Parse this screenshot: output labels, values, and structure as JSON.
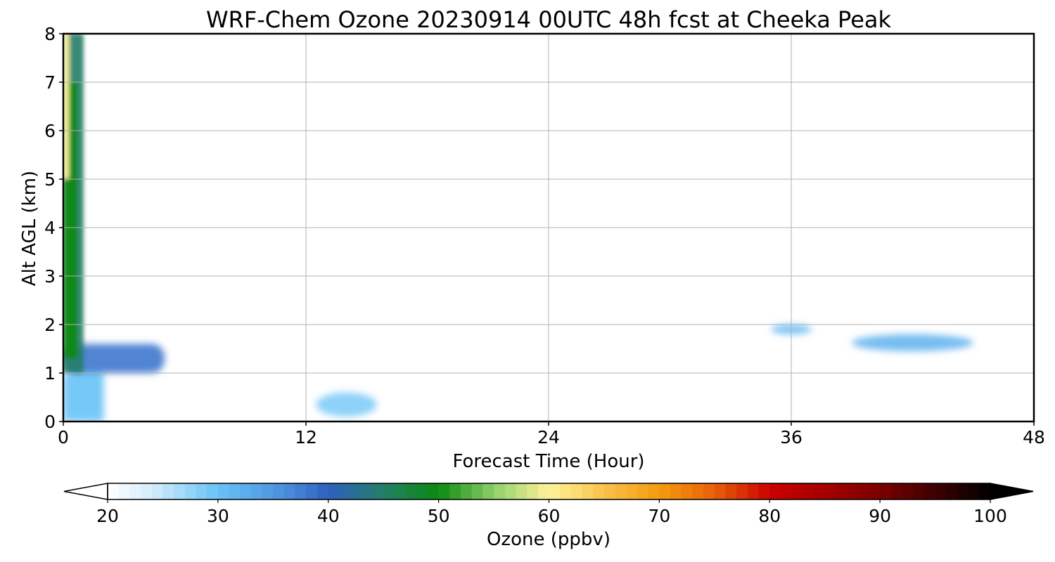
{
  "chart_data": {
    "type": "heatmap",
    "title": "WRF-Chem Ozone  20230914 00UTC 48h fcst at Cheeka Peak",
    "xlabel": "Forecast Time (Hour)",
    "ylabel": "Alt AGL (km)",
    "xlim": [
      0,
      48
    ],
    "ylim": [
      0,
      8
    ],
    "xticks": [
      0,
      12,
      24,
      36,
      48
    ],
    "xtick_labels": [
      "0",
      "12",
      "24",
      "36",
      "48"
    ],
    "yticks": [
      0,
      1,
      2,
      3,
      4,
      5,
      6,
      7,
      8
    ],
    "ytick_labels": [
      "0",
      "1",
      "2",
      "3",
      "4",
      "5",
      "6",
      "7",
      "8"
    ],
    "grid": true,
    "colorbar": {
      "label": "Ozone  (ppbv)",
      "orientation": "horizontal",
      "extend": "both",
      "range": [
        20,
        100
      ],
      "ticks": [
        20,
        30,
        40,
        50,
        60,
        70,
        80,
        90,
        100
      ],
      "tick_labels": [
        "20",
        "30",
        "40",
        "50",
        "60",
        "70",
        "80",
        "90",
        "100"
      ],
      "colormap": [
        {
          "value": 20,
          "color": "#ffffff"
        },
        {
          "value": 24,
          "color": "#d4ecfb"
        },
        {
          "value": 30,
          "color": "#67c2f7"
        },
        {
          "value": 36,
          "color": "#4c8fdd"
        },
        {
          "value": 40,
          "color": "#2f5fbe"
        },
        {
          "value": 45,
          "color": "#237e68"
        },
        {
          "value": 50,
          "color": "#0a8a10"
        },
        {
          "value": 55,
          "color": "#8fcf6a"
        },
        {
          "value": 60,
          "color": "#fff39a"
        },
        {
          "value": 65,
          "color": "#f8c24b"
        },
        {
          "value": 70,
          "color": "#f59b0f"
        },
        {
          "value": 75,
          "color": "#e8600a"
        },
        {
          "value": 80,
          "color": "#cc0000"
        },
        {
          "value": 90,
          "color": "#7c0000"
        },
        {
          "value": 100,
          "color": "#000000"
        }
      ],
      "under_color": "#ffffff",
      "over_color": "#000000"
    },
    "features": [
      {
        "region": "near-surface column",
        "x": [
          0,
          2
        ],
        "y": [
          0,
          1
        ],
        "ozone_ppbv": 30
      },
      {
        "region": "vertical column",
        "x": [
          0,
          1
        ],
        "y": [
          1,
          8
        ],
        "ozone_ppbv": 45
      },
      {
        "region": "column core",
        "x": [
          0,
          0.7
        ],
        "y": [
          1.3,
          7
        ],
        "ozone_ppbv": 50
      },
      {
        "region": "column edge top",
        "x": [
          0,
          0.3
        ],
        "y": [
          5,
          8
        ],
        "ozone_ppbv": 60
      },
      {
        "region": "low-level tongue",
        "x": [
          0,
          5
        ],
        "y": [
          1,
          1.6
        ],
        "ozone_ppbv": 38
      },
      {
        "region": "blob",
        "x": [
          12.5,
          15.5
        ],
        "y": [
          0.1,
          0.6
        ],
        "ozone_ppbv": 29
      },
      {
        "region": "blob",
        "x": [
          35,
          37
        ],
        "y": [
          1.8,
          2.0
        ],
        "ozone_ppbv": 31
      },
      {
        "region": "blob",
        "x": [
          39,
          45
        ],
        "y": [
          1.45,
          1.8
        ],
        "ozone_ppbv": 32
      }
    ]
  }
}
